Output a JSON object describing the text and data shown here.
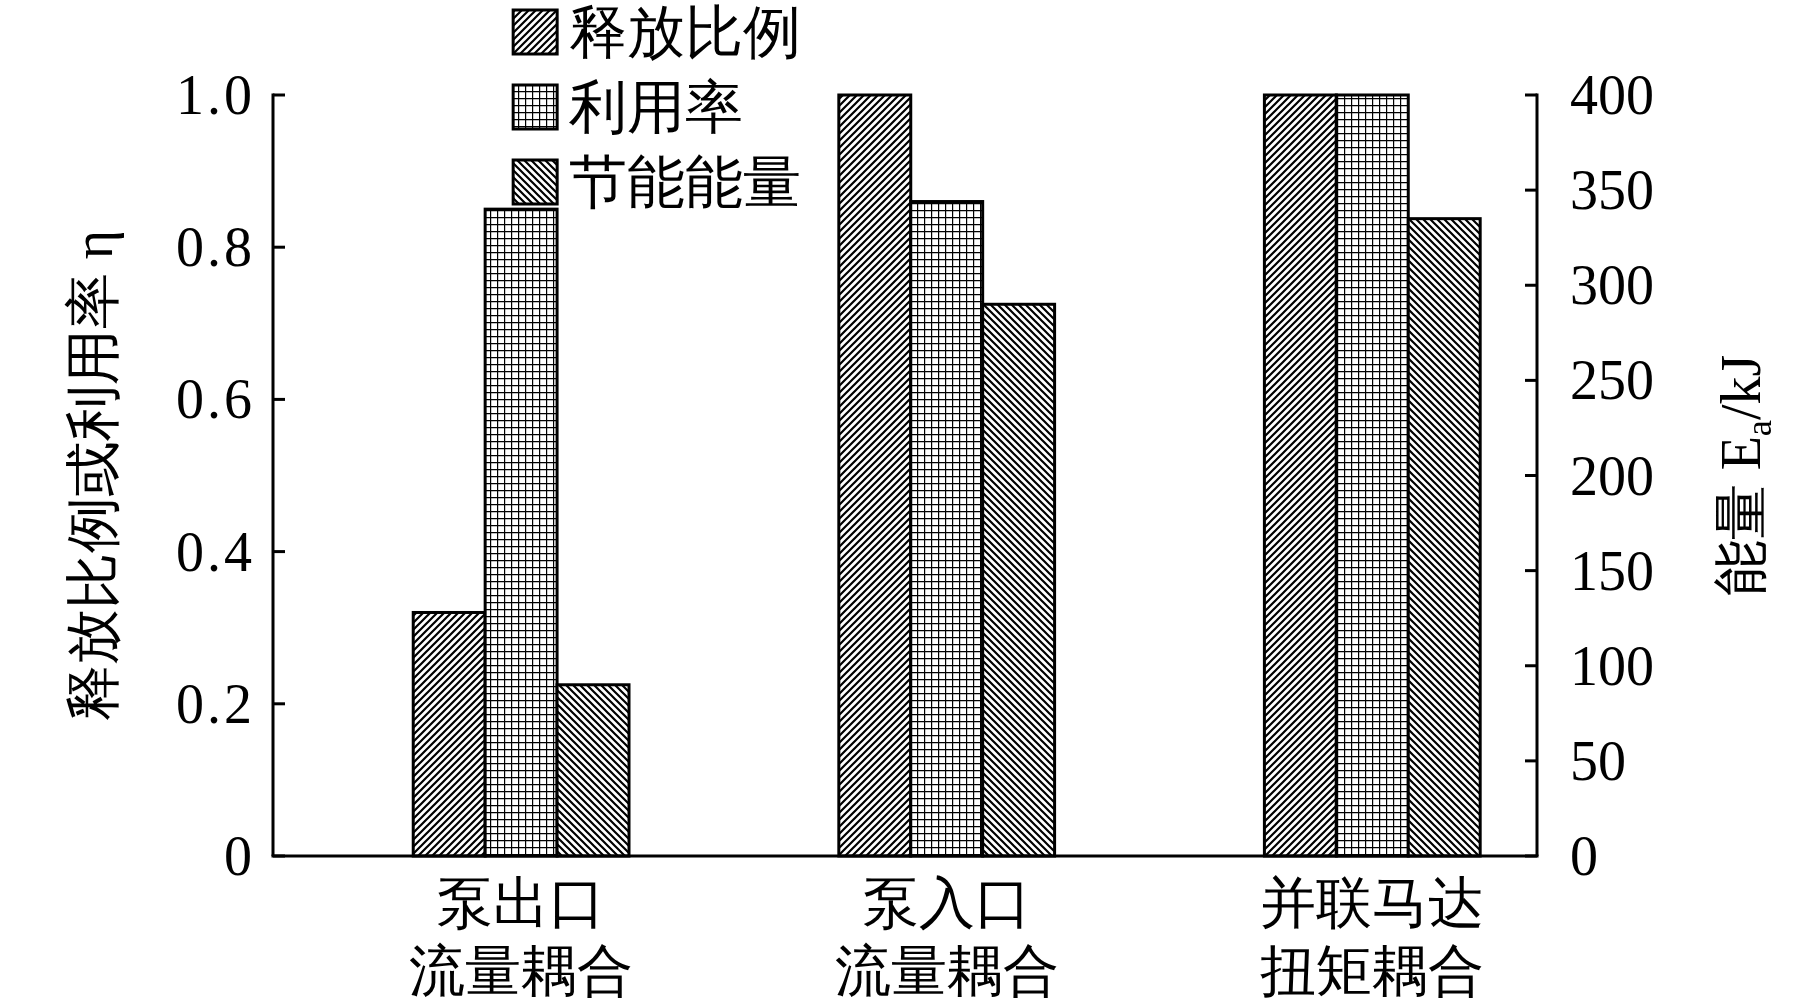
{
  "chart_data": {
    "type": "bar",
    "categories": [
      "泵出口流量耦合",
      "泵入口流量耦合",
      "并联马达扭矩耦合"
    ],
    "series": [
      {
        "name": "释放比例",
        "color": "#000000",
        "values": [
          0.32,
          1.0,
          1.0
        ]
      },
      {
        "name": "利用率",
        "color": "#000000",
        "values": [
          0.85,
          0.86,
          1.0
        ]
      },
      {
        "name": "节能能量",
        "color": "#000000",
        "values": [
          90,
          290,
          335
        ],
        "axis": "y2"
      }
    ],
    "ylabel": "释放比例或利用率 η",
    "y2label": "能量 E$_{a}$/kJ",
    "ylim": [
      0,
      1
    ],
    "yticks": [
      0,
      0.2,
      0.4,
      0.6,
      0.8,
      {
        "value": 1,
        "label": "1.0"
      }
    ],
    "y2lim": [
      0,
      400
    ],
    "y2ticks": [
      0,
      50,
      100,
      150,
      200,
      250,
      300,
      350,
      400
    ],
    "legend": "top left"
  }
}
